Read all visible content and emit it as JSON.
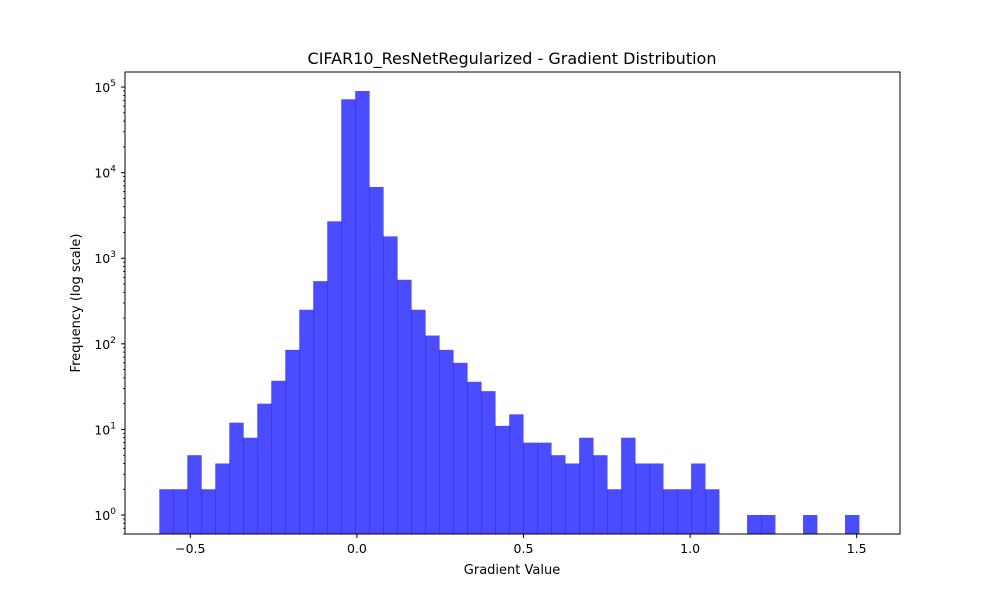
{
  "chart_data": {
    "type": "bar",
    "title": "CIFAR10_ResNetRegularized - Gradient Distribution",
    "xlabel": "Gradient Value",
    "ylabel": "Frequency (log scale)",
    "yscale": "log",
    "xlim": [
      -0.696,
      1.63
    ],
    "ylim": [
      0.6,
      150000
    ],
    "grid": false,
    "bar_color": "#0000ff",
    "bar_opacity": 0.7,
    "bin_edges": [
      -0.593,
      -0.551,
      -0.509,
      -0.467,
      -0.425,
      -0.383,
      -0.341,
      -0.299,
      -0.257,
      -0.215,
      -0.173,
      -0.131,
      -0.089,
      -0.047,
      -0.005,
      0.037,
      0.079,
      0.121,
      0.163,
      0.205,
      0.247,
      0.289,
      0.331,
      0.373,
      0.415,
      0.457,
      0.499,
      0.541,
      0.583,
      0.625,
      0.667,
      0.709,
      0.751,
      0.793,
      0.835,
      0.877,
      0.919,
      0.961,
      1.003,
      1.045,
      1.087,
      1.129,
      1.171,
      1.213,
      1.255,
      1.297,
      1.339,
      1.381,
      1.423,
      1.465,
      1.507
    ],
    "counts": [
      2,
      2,
      5,
      2,
      4,
      12,
      8,
      20,
      37,
      85,
      250,
      540,
      2700,
      72000,
      90000,
      6800,
      1800,
      560,
      250,
      125,
      85,
      60,
      36,
      28,
      11,
      15,
      7,
      7,
      5,
      4,
      8,
      5,
      2,
      8,
      4,
      4,
      2,
      2,
      4,
      2,
      0,
      0,
      1,
      1,
      0,
      0,
      1,
      0,
      0,
      1
    ],
    "xticks": [
      {
        "value": -0.5,
        "label": "−0.5"
      },
      {
        "value": 0.0,
        "label": "0.0"
      },
      {
        "value": 0.5,
        "label": "0.5"
      },
      {
        "value": 1.0,
        "label": "1.0"
      },
      {
        "value": 1.5,
        "label": "1.5"
      }
    ],
    "yticks": [
      {
        "value": 1,
        "exp": "0"
      },
      {
        "value": 10,
        "exp": "1"
      },
      {
        "value": 100,
        "exp": "2"
      },
      {
        "value": 1000,
        "exp": "3"
      },
      {
        "value": 10000,
        "exp": "4"
      },
      {
        "value": 100000,
        "exp": "5"
      }
    ],
    "ytick_base": "10"
  }
}
